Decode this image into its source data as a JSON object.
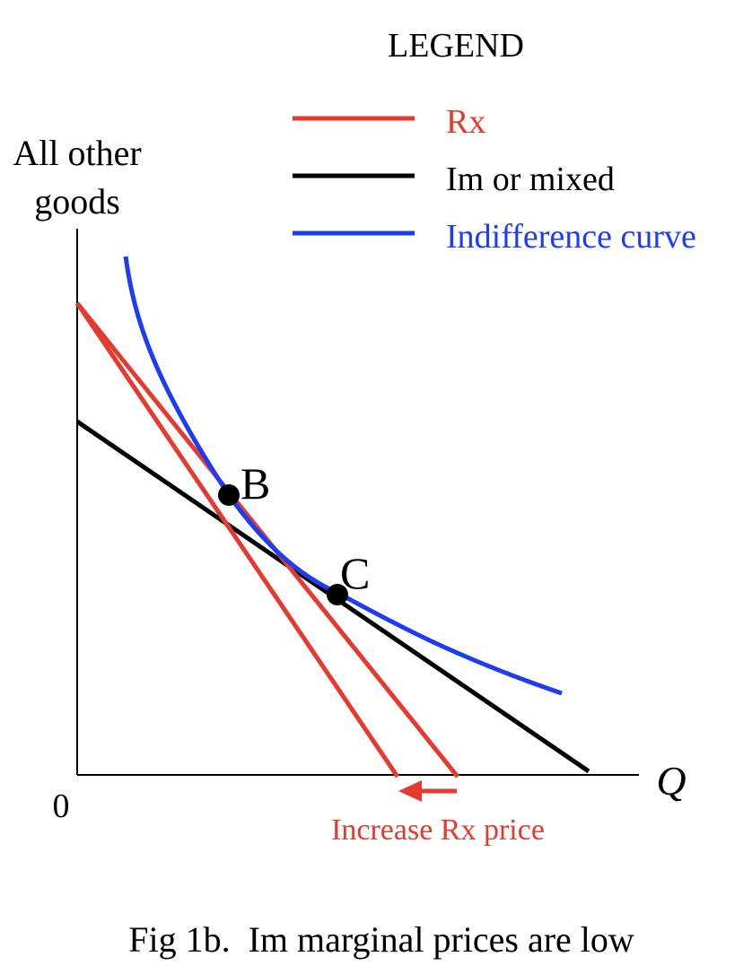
{
  "legend": {
    "title": "LEGEND",
    "items": [
      {
        "label": "Rx",
        "color": "#e53a2f"
      },
      {
        "label": "Im or mixed",
        "color": "#000000"
      },
      {
        "label": "Indifference curve",
        "color": "#1f3cf5"
      }
    ]
  },
  "axes": {
    "y_label_line1": "All other",
    "y_label_line2": "goods",
    "x_label": "Q",
    "origin_label": "0"
  },
  "points": {
    "b_label": "B",
    "c_label": "C"
  },
  "annotation": {
    "text": "Increase Rx price",
    "color": "#e53a2f"
  },
  "caption": "Fig 1b.  Im marginal prices are low"
}
